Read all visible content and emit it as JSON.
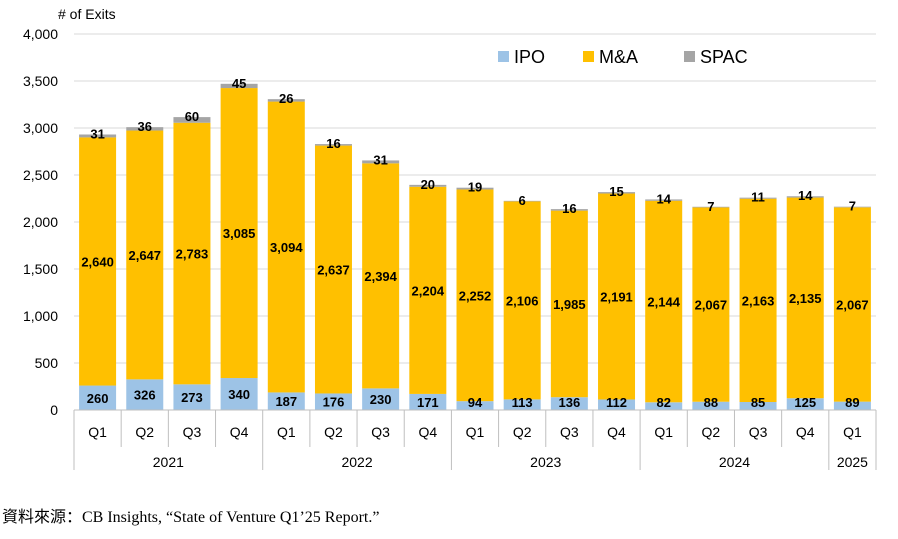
{
  "chart_data": {
    "type": "bar",
    "stacked": true,
    "ylabel": "# of Exits",
    "ylim": [
      0,
      4000
    ],
    "yticks": [
      0,
      500,
      1000,
      1500,
      2000,
      2500,
      3000,
      3500,
      4000
    ],
    "ytick_labels": [
      "0",
      "500",
      "1,000",
      "1,500",
      "2,000",
      "2,500",
      "3,000",
      "3,500",
      "4,000"
    ],
    "categories": [
      "Q1",
      "Q2",
      "Q3",
      "Q4",
      "Q1",
      "Q2",
      "Q3",
      "Q4",
      "Q1",
      "Q2",
      "Q3",
      "Q4",
      "Q1",
      "Q2",
      "Q3",
      "Q4",
      "Q1"
    ],
    "years": [
      {
        "label": "2021",
        "span": 4
      },
      {
        "label": "2022",
        "span": 4
      },
      {
        "label": "2023",
        "span": 4
      },
      {
        "label": "2024",
        "span": 4
      },
      {
        "label": "2025",
        "span": 1
      }
    ],
    "series": [
      {
        "name": "IPO",
        "color": "#9DC3E6",
        "values": [
          260,
          326,
          273,
          340,
          187,
          176,
          230,
          171,
          94,
          113,
          136,
          112,
          82,
          88,
          85,
          125,
          89
        ]
      },
      {
        "name": "M&A",
        "color": "#FFC000",
        "values": [
          2640,
          2647,
          2783,
          3085,
          3094,
          2637,
          2394,
          2204,
          2252,
          2106,
          1985,
          2191,
          2144,
          2067,
          2163,
          2135,
          2067
        ]
      },
      {
        "name": "SPAC",
        "color": "#A5A5A5",
        "values": [
          31,
          36,
          60,
          45,
          26,
          16,
          31,
          20,
          19,
          6,
          16,
          15,
          14,
          7,
          11,
          14,
          7
        ]
      }
    ],
    "legend": "top-right"
  },
  "source_text": "資料來源：CB Insights, “State of Venture Q1’25 Report.”"
}
